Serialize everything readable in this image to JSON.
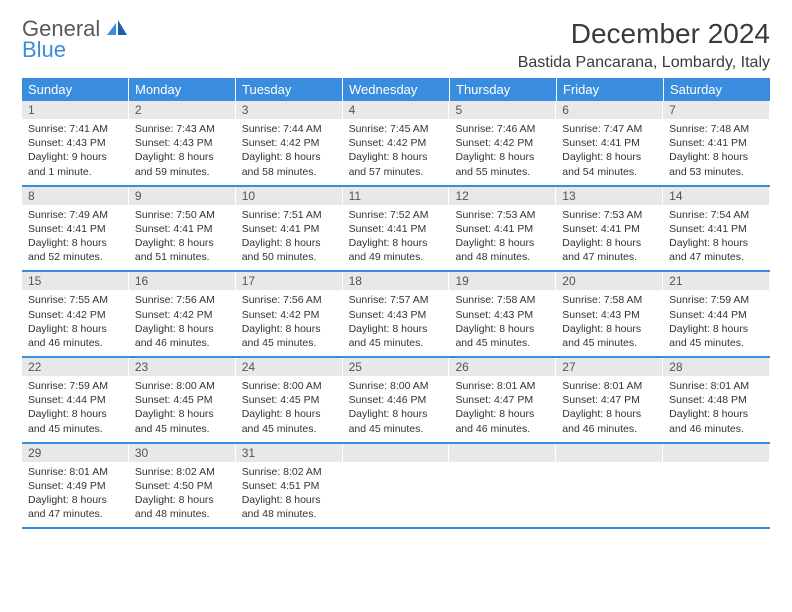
{
  "logo": {
    "general": "General",
    "blue": "Blue"
  },
  "title": "December 2024",
  "location": "Bastida Pancarana, Lombardy, Italy",
  "colors": {
    "header_bg": "#3a8dde",
    "header_text": "#ffffff",
    "daynum_bg": "#e8e8e8",
    "text": "#333333",
    "rule": "#3a8dde"
  },
  "day_names": [
    "Sunday",
    "Monday",
    "Tuesday",
    "Wednesday",
    "Thursday",
    "Friday",
    "Saturday"
  ],
  "weeks": [
    [
      {
        "n": "1",
        "sr": "Sunrise: 7:41 AM",
        "ss": "Sunset: 4:43 PM",
        "dl": "Daylight: 9 hours and 1 minute."
      },
      {
        "n": "2",
        "sr": "Sunrise: 7:43 AM",
        "ss": "Sunset: 4:43 PM",
        "dl": "Daylight: 8 hours and 59 minutes."
      },
      {
        "n": "3",
        "sr": "Sunrise: 7:44 AM",
        "ss": "Sunset: 4:42 PM",
        "dl": "Daylight: 8 hours and 58 minutes."
      },
      {
        "n": "4",
        "sr": "Sunrise: 7:45 AM",
        "ss": "Sunset: 4:42 PM",
        "dl": "Daylight: 8 hours and 57 minutes."
      },
      {
        "n": "5",
        "sr": "Sunrise: 7:46 AM",
        "ss": "Sunset: 4:42 PM",
        "dl": "Daylight: 8 hours and 55 minutes."
      },
      {
        "n": "6",
        "sr": "Sunrise: 7:47 AM",
        "ss": "Sunset: 4:41 PM",
        "dl": "Daylight: 8 hours and 54 minutes."
      },
      {
        "n": "7",
        "sr": "Sunrise: 7:48 AM",
        "ss": "Sunset: 4:41 PM",
        "dl": "Daylight: 8 hours and 53 minutes."
      }
    ],
    [
      {
        "n": "8",
        "sr": "Sunrise: 7:49 AM",
        "ss": "Sunset: 4:41 PM",
        "dl": "Daylight: 8 hours and 52 minutes."
      },
      {
        "n": "9",
        "sr": "Sunrise: 7:50 AM",
        "ss": "Sunset: 4:41 PM",
        "dl": "Daylight: 8 hours and 51 minutes."
      },
      {
        "n": "10",
        "sr": "Sunrise: 7:51 AM",
        "ss": "Sunset: 4:41 PM",
        "dl": "Daylight: 8 hours and 50 minutes."
      },
      {
        "n": "11",
        "sr": "Sunrise: 7:52 AM",
        "ss": "Sunset: 4:41 PM",
        "dl": "Daylight: 8 hours and 49 minutes."
      },
      {
        "n": "12",
        "sr": "Sunrise: 7:53 AM",
        "ss": "Sunset: 4:41 PM",
        "dl": "Daylight: 8 hours and 48 minutes."
      },
      {
        "n": "13",
        "sr": "Sunrise: 7:53 AM",
        "ss": "Sunset: 4:41 PM",
        "dl": "Daylight: 8 hours and 47 minutes."
      },
      {
        "n": "14",
        "sr": "Sunrise: 7:54 AM",
        "ss": "Sunset: 4:41 PM",
        "dl": "Daylight: 8 hours and 47 minutes."
      }
    ],
    [
      {
        "n": "15",
        "sr": "Sunrise: 7:55 AM",
        "ss": "Sunset: 4:42 PM",
        "dl": "Daylight: 8 hours and 46 minutes."
      },
      {
        "n": "16",
        "sr": "Sunrise: 7:56 AM",
        "ss": "Sunset: 4:42 PM",
        "dl": "Daylight: 8 hours and 46 minutes."
      },
      {
        "n": "17",
        "sr": "Sunrise: 7:56 AM",
        "ss": "Sunset: 4:42 PM",
        "dl": "Daylight: 8 hours and 45 minutes."
      },
      {
        "n": "18",
        "sr": "Sunrise: 7:57 AM",
        "ss": "Sunset: 4:43 PM",
        "dl": "Daylight: 8 hours and 45 minutes."
      },
      {
        "n": "19",
        "sr": "Sunrise: 7:58 AM",
        "ss": "Sunset: 4:43 PM",
        "dl": "Daylight: 8 hours and 45 minutes."
      },
      {
        "n": "20",
        "sr": "Sunrise: 7:58 AM",
        "ss": "Sunset: 4:43 PM",
        "dl": "Daylight: 8 hours and 45 minutes."
      },
      {
        "n": "21",
        "sr": "Sunrise: 7:59 AM",
        "ss": "Sunset: 4:44 PM",
        "dl": "Daylight: 8 hours and 45 minutes."
      }
    ],
    [
      {
        "n": "22",
        "sr": "Sunrise: 7:59 AM",
        "ss": "Sunset: 4:44 PM",
        "dl": "Daylight: 8 hours and 45 minutes."
      },
      {
        "n": "23",
        "sr": "Sunrise: 8:00 AM",
        "ss": "Sunset: 4:45 PM",
        "dl": "Daylight: 8 hours and 45 minutes."
      },
      {
        "n": "24",
        "sr": "Sunrise: 8:00 AM",
        "ss": "Sunset: 4:45 PM",
        "dl": "Daylight: 8 hours and 45 minutes."
      },
      {
        "n": "25",
        "sr": "Sunrise: 8:00 AM",
        "ss": "Sunset: 4:46 PM",
        "dl": "Daylight: 8 hours and 45 minutes."
      },
      {
        "n": "26",
        "sr": "Sunrise: 8:01 AM",
        "ss": "Sunset: 4:47 PM",
        "dl": "Daylight: 8 hours and 46 minutes."
      },
      {
        "n": "27",
        "sr": "Sunrise: 8:01 AM",
        "ss": "Sunset: 4:47 PM",
        "dl": "Daylight: 8 hours and 46 minutes."
      },
      {
        "n": "28",
        "sr": "Sunrise: 8:01 AM",
        "ss": "Sunset: 4:48 PM",
        "dl": "Daylight: 8 hours and 46 minutes."
      }
    ],
    [
      {
        "n": "29",
        "sr": "Sunrise: 8:01 AM",
        "ss": "Sunset: 4:49 PM",
        "dl": "Daylight: 8 hours and 47 minutes."
      },
      {
        "n": "30",
        "sr": "Sunrise: 8:02 AM",
        "ss": "Sunset: 4:50 PM",
        "dl": "Daylight: 8 hours and 48 minutes."
      },
      {
        "n": "31",
        "sr": "Sunrise: 8:02 AM",
        "ss": "Sunset: 4:51 PM",
        "dl": "Daylight: 8 hours and 48 minutes."
      },
      {
        "empty": true
      },
      {
        "empty": true
      },
      {
        "empty": true
      },
      {
        "empty": true
      }
    ]
  ]
}
